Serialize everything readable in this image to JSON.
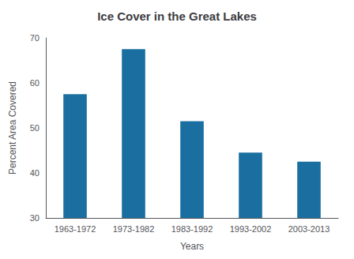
{
  "chart_data": {
    "type": "bar",
    "title": "Ice Cover in the Great Lakes",
    "categories": [
      "1963-1972",
      "1973-1982",
      "1983-1992",
      "1993-2002",
      "2003-2013"
    ],
    "values": [
      57.5,
      67.5,
      51.5,
      44.5,
      42.5
    ],
    "color": "#1a6fa0",
    "xlabel": "Years",
    "ylabel": "Percent Area Covered",
    "ylim": [
      30,
      70
    ],
    "yticks": [
      30,
      40,
      50,
      60,
      70
    ],
    "grid": false
  }
}
